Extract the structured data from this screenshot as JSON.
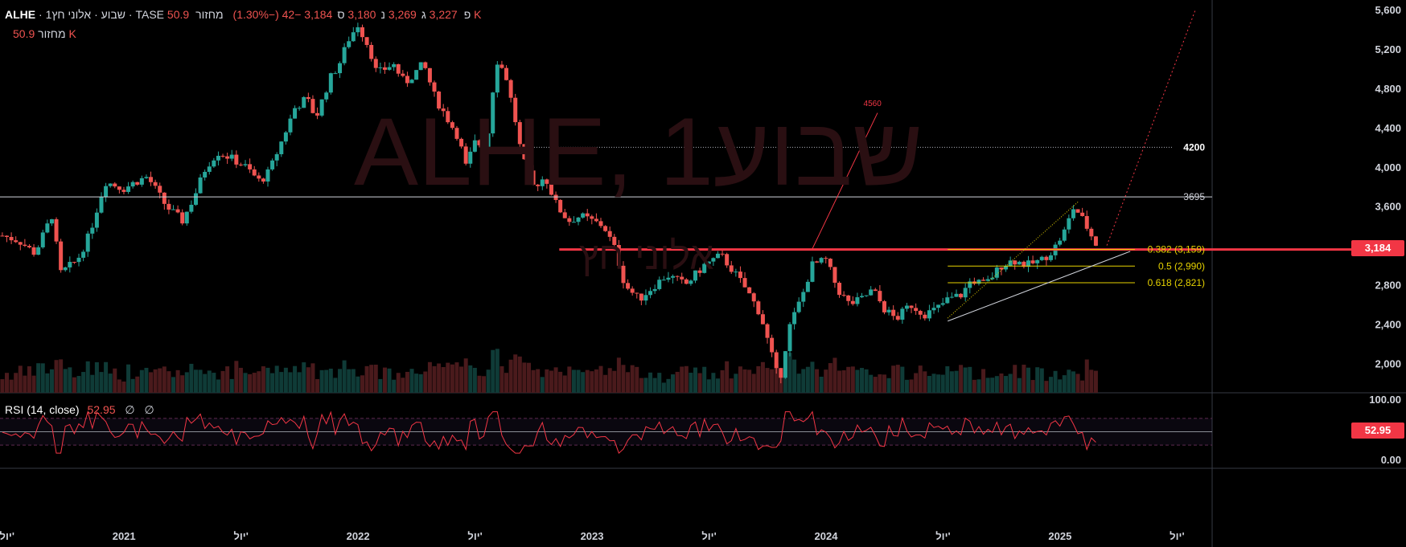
{
  "header": {
    "symbol": "ALHE",
    "interval": "1שבוע",
    "name": "אלוני חץ",
    "exchange": "TASE",
    "open_label": "פ",
    "open": "3,227",
    "high_label": "ג",
    "high": "3,269",
    "low_label": "נ",
    "low": "3,180",
    "close_label": "ס",
    "close": "3,184",
    "change": "−42 (−1.30%)",
    "volume_label": "מחזור",
    "volume": "50.9 K"
  },
  "volume_row": {
    "label": "מחזור",
    "value": "50.9 K"
  },
  "watermark": {
    "big": "ALHE, 1שבוע",
    "small": "אלוני חץ"
  },
  "rsi": {
    "label": "RSI (14, close)",
    "value": "52.95",
    "extra1": "∅",
    "extra2": "∅"
  },
  "colors": {
    "up": "#26a69a",
    "down": "#ef5350",
    "fib": "#e6d200",
    "level": "#d1d4dc",
    "red_line": "#f23645"
  },
  "chart_data": {
    "type": "candlestick",
    "y_axis": {
      "min": 1700,
      "max": 5700,
      "ticks": [
        2000,
        2400,
        2800,
        3200,
        3600,
        4000,
        4400,
        4800,
        5200,
        5600
      ],
      "tick_labels": [
        "2,000",
        "2,400",
        "2,800",
        "3,200",
        "3,600",
        "4,000",
        "4,400",
        "4,800",
        "5,200",
        "5,600"
      ]
    },
    "x_axis": {
      "labels": [
        "יול'",
        "2021",
        "יול'",
        "2022",
        "יול'",
        "2023",
        "יול'",
        "2024",
        "יול'",
        "2025",
        "יול'"
      ],
      "label_dates": [
        2020.5,
        2021.0,
        2021.5,
        2022.0,
        2022.5,
        2023.0,
        2023.5,
        2024.0,
        2024.5,
        2025.0,
        2025.5
      ],
      "range": [
        2020.47,
        2025.65
      ]
    },
    "close_path": [
      [
        2020.48,
        3300
      ],
      [
        2020.55,
        3250
      ],
      [
        2020.62,
        3120
      ],
      [
        2020.7,
        3550
      ],
      [
        2020.72,
        2900
      ],
      [
        2020.8,
        3050
      ],
      [
        2020.85,
        3300
      ],
      [
        2020.92,
        3850
      ],
      [
        2021.0,
        3780
      ],
      [
        2021.05,
        3850
      ],
      [
        2021.1,
        3900
      ],
      [
        2021.18,
        3600
      ],
      [
        2021.25,
        3450
      ],
      [
        2021.3,
        3700
      ],
      [
        2021.35,
        4000
      ],
      [
        2021.4,
        4150
      ],
      [
        2021.45,
        4100
      ],
      [
        2021.52,
        4000
      ],
      [
        2021.58,
        3850
      ],
      [
        2021.62,
        3950
      ],
      [
        2021.68,
        4300
      ],
      [
        2021.73,
        4600
      ],
      [
        2021.78,
        4700
      ],
      [
        2021.82,
        4500
      ],
      [
        2021.88,
        4900
      ],
      [
        2021.92,
        5050
      ],
      [
        2021.96,
        5300
      ],
      [
        2022.0,
        5450
      ],
      [
        2022.05,
        5200
      ],
      [
        2022.08,
        4950
      ],
      [
        2022.15,
        5050
      ],
      [
        2022.2,
        4850
      ],
      [
        2022.28,
        5050
      ],
      [
        2022.33,
        4700
      ],
      [
        2022.38,
        4500
      ],
      [
        2022.43,
        4300
      ],
      [
        2022.46,
        4000
      ],
      [
        2022.5,
        4250
      ],
      [
        2022.55,
        4200
      ],
      [
        2022.59,
        5100
      ],
      [
        2022.63,
        4950
      ],
      [
        2022.67,
        4500
      ],
      [
        2022.7,
        4100
      ],
      [
        2022.75,
        3800
      ],
      [
        2022.8,
        3900
      ],
      [
        2022.85,
        3600
      ],
      [
        2022.9,
        3450
      ],
      [
        2022.95,
        3500
      ],
      [
        2023.0,
        3450
      ],
      [
        2023.05,
        3400
      ],
      [
        2023.1,
        3150
      ],
      [
        2023.14,
        2800
      ],
      [
        2023.2,
        2650
      ],
      [
        2023.27,
        2800
      ],
      [
        2023.32,
        2900
      ],
      [
        2023.4,
        2800
      ],
      [
        2023.48,
        3000
      ],
      [
        2023.55,
        3100
      ],
      [
        2023.6,
        2950
      ],
      [
        2023.66,
        2750
      ],
      [
        2023.72,
        2500
      ],
      [
        2023.76,
        2150
      ],
      [
        2023.8,
        1800
      ],
      [
        2023.84,
        2350
      ],
      [
        2023.9,
        2700
      ],
      [
        2023.94,
        3000
      ],
      [
        2024.0,
        3050
      ],
      [
        2024.05,
        2750
      ],
      [
        2024.1,
        2600
      ],
      [
        2024.15,
        2650
      ],
      [
        2024.2,
        2750
      ],
      [
        2024.25,
        2550
      ],
      [
        2024.3,
        2450
      ],
      [
        2024.36,
        2600
      ],
      [
        2024.42,
        2500
      ],
      [
        2024.47,
        2550
      ],
      [
        2024.52,
        2650
      ],
      [
        2024.58,
        2700
      ],
      [
        2024.62,
        2850
      ],
      [
        2024.68,
        2800
      ],
      [
        2024.75,
        3000
      ],
      [
        2024.8,
        3050
      ],
      [
        2024.86,
        3000
      ],
      [
        2024.92,
        3050
      ],
      [
        2024.97,
        3150
      ],
      [
        2025.02,
        3350
      ],
      [
        2025.06,
        3600
      ],
      [
        2025.1,
        3450
      ],
      [
        2025.16,
        3184
      ]
    ],
    "annotations": {
      "red_level": 3159,
      "level_3695": 3695,
      "level_4200": 4200,
      "label_3695": "3695",
      "label_4200": "4200",
      "target_label": "4560",
      "fib": [
        {
          "label": "0.382 (3,159)",
          "value": 3159
        },
        {
          "label": "0.5 (2,990)",
          "value": 2990
        },
        {
          "label": "0.618 (2,821)",
          "value": 2821
        }
      ],
      "current_price": 3184,
      "current_price_label": "3,184"
    },
    "rsi_axis": {
      "labels": [
        "100.00",
        "0.00"
      ],
      "upper": 70,
      "lower": 30,
      "mid": 50
    }
  }
}
